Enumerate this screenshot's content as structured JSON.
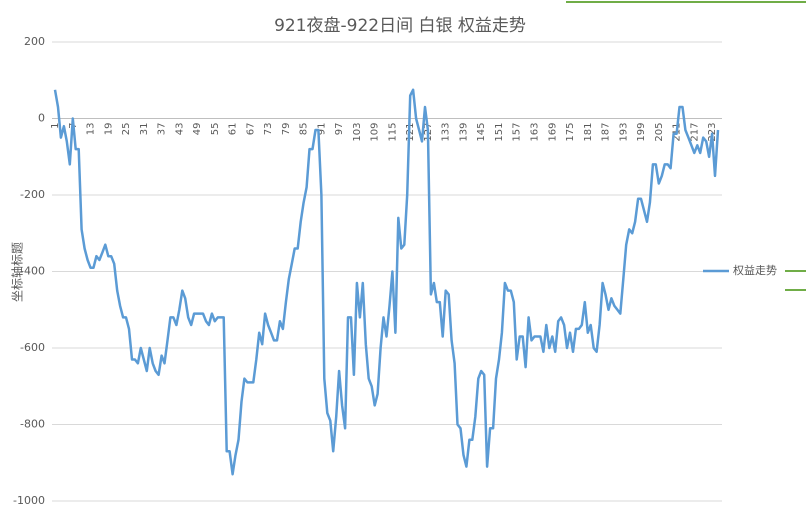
{
  "chart_data": {
    "type": "line",
    "title": "921夜盘-922日间 白银 权益走势",
    "y_axis_label": "坐标轴标题",
    "categories": [
      "1",
      null,
      null,
      null,
      null,
      null,
      "7",
      null,
      null,
      null,
      null,
      null,
      "13",
      null,
      null,
      null,
      null,
      null,
      "19",
      null,
      null,
      null,
      null,
      null,
      "25",
      null,
      null,
      null,
      null,
      null,
      "31",
      null,
      null,
      null,
      null,
      null,
      "37",
      null,
      null,
      null,
      null,
      null,
      "43",
      null,
      null,
      null,
      null,
      null,
      "49",
      null,
      null,
      null,
      null,
      null,
      "55",
      null,
      null,
      null,
      null,
      null,
      "61",
      null,
      null,
      null,
      null,
      null,
      "67",
      null,
      null,
      null,
      null,
      null,
      "73",
      null,
      null,
      null,
      null,
      null,
      "79",
      null,
      null,
      null,
      null,
      null,
      "85",
      null,
      null,
      null,
      null,
      null,
      "91",
      null,
      null,
      null,
      null,
      null,
      "97",
      null,
      null,
      null,
      null,
      null,
      "103",
      null,
      null,
      null,
      null,
      null,
      "109",
      null,
      null,
      null,
      null,
      null,
      "115",
      null,
      null,
      null,
      null,
      null,
      "121",
      null,
      null,
      null,
      null,
      null,
      "127",
      null,
      null,
      null,
      null,
      null,
      "133",
      null,
      null,
      null,
      null,
      null,
      "139",
      null,
      null,
      null,
      null,
      null,
      "145",
      null,
      null,
      null,
      null,
      null,
      "151",
      null,
      null,
      null,
      null,
      null,
      "157",
      null,
      null,
      null,
      null,
      null,
      "163",
      null,
      null,
      null,
      null,
      null,
      "169",
      null,
      null,
      null,
      null,
      null,
      "175",
      null,
      null,
      null,
      null,
      null,
      "181",
      null,
      null,
      null,
      null,
      null,
      "187",
      null,
      null,
      null,
      null,
      null,
      "193",
      null,
      null,
      null,
      null,
      null,
      "199",
      null,
      null,
      null,
      null,
      null,
      "205",
      null,
      null,
      null,
      null,
      null,
      "211",
      null,
      null,
      null,
      null,
      null,
      "217",
      null,
      null,
      null,
      null,
      null,
      "223",
      null,
      null
    ],
    "series": [
      {
        "name": "权益走势",
        "color": "#5b9bd5",
        "values": [
          75,
          30,
          -50,
          -20,
          -60,
          -120,
          0,
          -80,
          -80,
          -290,
          -340,
          -370,
          -390,
          -390,
          -360,
          -370,
          -350,
          -330,
          -360,
          -360,
          -380,
          -450,
          -490,
          -520,
          -520,
          -550,
          -630,
          -630,
          -640,
          -600,
          -630,
          -660,
          -600,
          -640,
          -660,
          -670,
          -620,
          -640,
          -580,
          -520,
          -520,
          -540,
          -500,
          -450,
          -470,
          -520,
          -540,
          -510,
          -510,
          -510,
          -510,
          -530,
          -540,
          -510,
          -530,
          -520,
          -520,
          -520,
          -870,
          -870,
          -930,
          -880,
          -840,
          -740,
          -680,
          -690,
          -690,
          -690,
          -630,
          -560,
          -590,
          -510,
          -540,
          -560,
          -580,
          -580,
          -530,
          -550,
          -480,
          -420,
          -380,
          -340,
          -340,
          -270,
          -220,
          -180,
          -80,
          -80,
          -30,
          -30,
          -200,
          -680,
          -770,
          -790,
          -870,
          -780,
          -660,
          -750,
          -810,
          -520,
          -520,
          -670,
          -430,
          -520,
          -430,
          -590,
          -680,
          -700,
          -750,
          -720,
          -600,
          -520,
          -570,
          -490,
          -400,
          -560,
          -260,
          -340,
          -330,
          -200,
          60,
          75,
          0,
          -30,
          -60,
          30,
          -30,
          -460,
          -430,
          -480,
          -480,
          -570,
          -450,
          -460,
          -580,
          -640,
          -800,
          -810,
          -880,
          -910,
          -840,
          -840,
          -780,
          -680,
          -660,
          -670,
          -910,
          -810,
          -810,
          -680,
          -630,
          -560,
          -430,
          -450,
          -450,
          -480,
          -630,
          -570,
          -570,
          -650,
          -520,
          -580,
          -570,
          -570,
          -570,
          -610,
          -540,
          -600,
          -570,
          -610,
          -530,
          -520,
          -540,
          -600,
          -560,
          -610,
          -550,
          -550,
          -540,
          -480,
          -560,
          -540,
          -600,
          -610,
          -540,
          -430,
          -460,
          -500,
          -470,
          -490,
          -500,
          -510,
          -420,
          -330,
          -290,
          -300,
          -270,
          -210,
          -210,
          -240,
          -270,
          -220,
          -120,
          -120,
          -170,
          -150,
          -120,
          -120,
          -130,
          -40,
          -40,
          30,
          30,
          -30,
          -50,
          -70,
          -90,
          -70,
          -90,
          -50,
          -60,
          -100,
          -40,
          -150,
          -30
        ]
      }
    ],
    "ylim": [
      -1000,
      200
    ],
    "yticks": [
      -1000,
      -800,
      -600,
      -400,
      -200,
      0,
      200
    ],
    "grid": true,
    "legend": "right"
  }
}
